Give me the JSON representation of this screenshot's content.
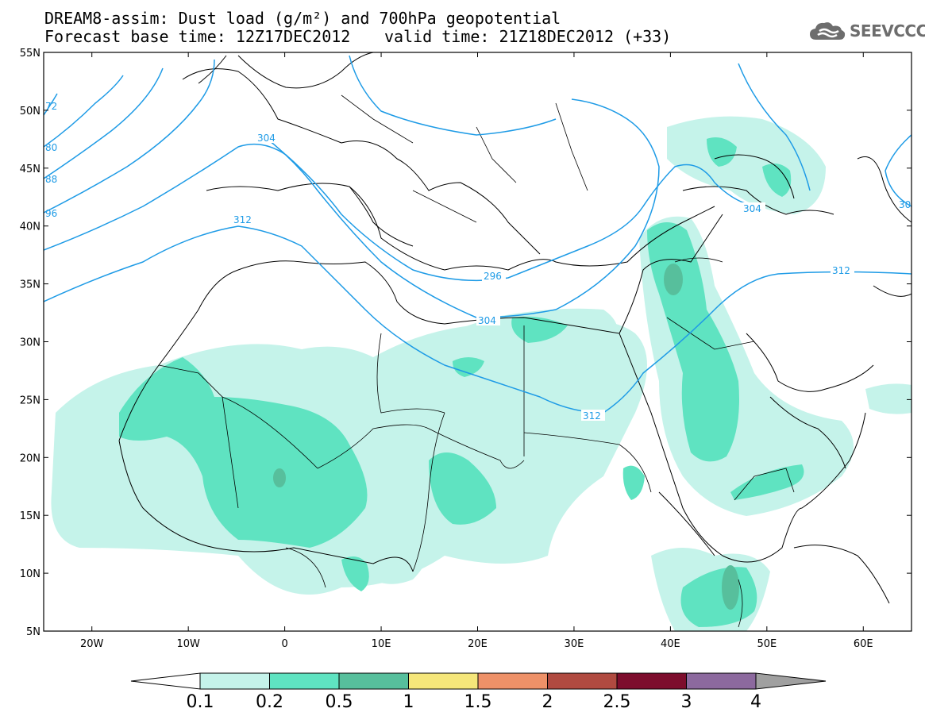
{
  "header": {
    "title_line1": "DREAM8-assim: Dust load (g/m²) and 700hPa geopotential",
    "title_line2": "Forecast base time: 12Z17DEC2012",
    "valid_time": "valid time: 21Z18DEC2012 (+33)",
    "logo_text": "SEEVCCC",
    "logo_icon": "cloud-icon"
  },
  "map": {
    "extent_lon": [
      -25,
      65
    ],
    "extent_lat": [
      5,
      55
    ],
    "lat_labels": [
      "55N",
      "50N",
      "45N",
      "40N",
      "35N",
      "30N",
      "25N",
      "20N",
      "15N",
      "10N",
      "5N"
    ],
    "lon_labels": [
      "20W",
      "10W",
      "0",
      "10E",
      "20E",
      "30E",
      "40E",
      "50E",
      "60E"
    ],
    "contour_labels": [
      "304",
      "312",
      "296",
      "304",
      "312",
      "304",
      "312",
      "80",
      "88",
      "96",
      "72",
      "30"
    ],
    "colors": {
      "contour": "#1e9be6",
      "border": "#000000"
    }
  },
  "colorbar": {
    "ticks": [
      "0.1",
      "0.2",
      "0.5",
      "1",
      "1.5",
      "2",
      "2.5",
      "3",
      "4"
    ],
    "colors": [
      "#ffffff",
      "#c5f3ea",
      "#5fe3c1",
      "#57bf9c",
      "#f5e67a",
      "#ee9168",
      "#b04a40",
      "#7d0d2d",
      "#8c699e",
      "#a0a0a0"
    ]
  }
}
